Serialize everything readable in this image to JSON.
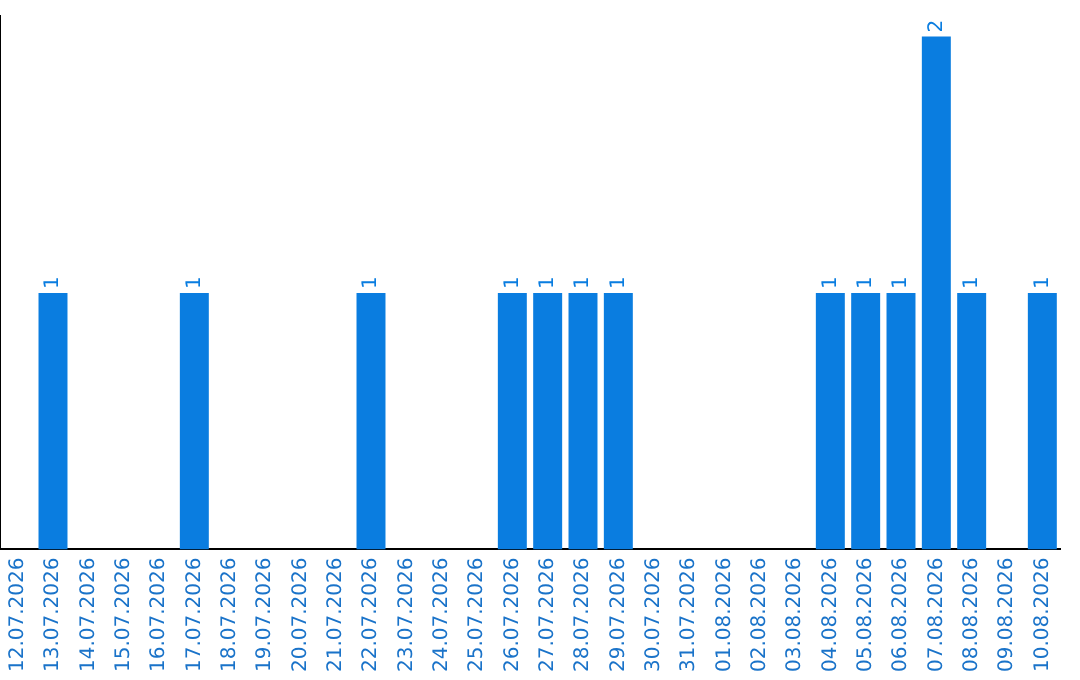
{
  "chart_data": {
    "type": "bar",
    "categories": [
      "12.07.2026",
      "13.07.2026",
      "14.07.2026",
      "15.07.2026",
      "16.07.2026",
      "17.07.2026",
      "18.07.2026",
      "19.07.2026",
      "20.07.2026",
      "21.07.2026",
      "22.07.2026",
      "23.07.2026",
      "24.07.2026",
      "25.07.2026",
      "26.07.2026",
      "27.07.2026",
      "28.07.2026",
      "29.07.2026",
      "30.07.2026",
      "31.07.2026",
      "01.08.2026",
      "02.08.2026",
      "03.08.2026",
      "04.08.2026",
      "05.08.2026",
      "06.08.2026",
      "07.08.2026",
      "08.08.2026",
      "09.08.2026",
      "10.08.2026"
    ],
    "values": [
      0,
      1,
      0,
      0,
      0,
      1,
      0,
      0,
      0,
      0,
      1,
      0,
      0,
      0,
      1,
      1,
      1,
      1,
      0,
      0,
      0,
      0,
      0,
      1,
      1,
      1,
      2,
      1,
      0,
      1
    ],
    "value_labels": [
      null,
      "1",
      null,
      null,
      null,
      "1",
      null,
      null,
      null,
      null,
      "1",
      null,
      null,
      null,
      "1",
      "1",
      "1",
      "1",
      null,
      null,
      null,
      null,
      null,
      "1",
      "1",
      "1",
      "2",
      "1",
      null,
      "1"
    ],
    "color": "#0a7de0",
    "ylim": [
      0,
      2.08
    ],
    "tick_labels": "x",
    "grid": false,
    "legend": false
  }
}
